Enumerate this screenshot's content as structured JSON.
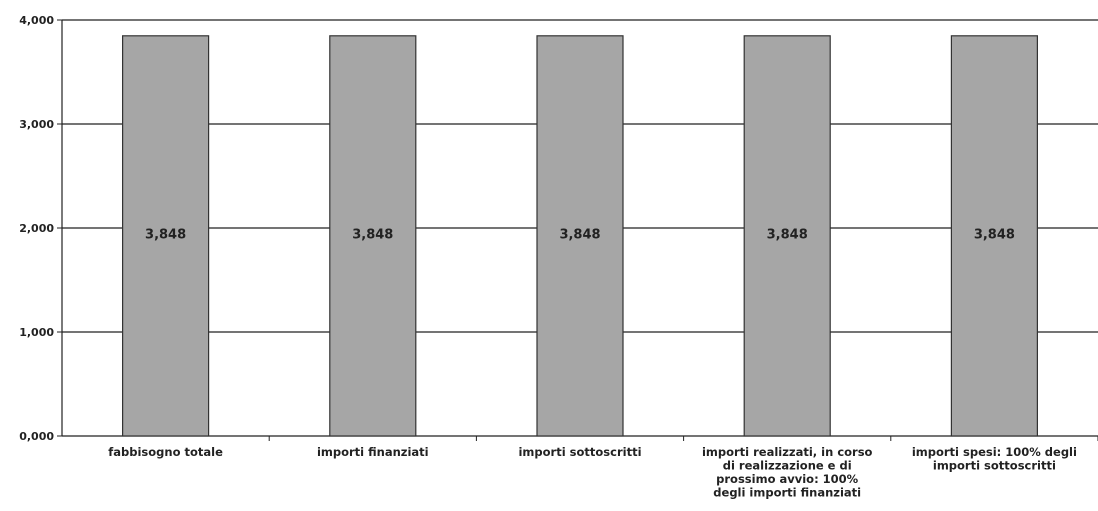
{
  "chart_data": {
    "type": "bar",
    "categories": [
      "fabbisogno totale",
      "importi finanziati",
      "importi sottoscritti",
      "importi realizzati, in corso di realizzazione e di prossimo avvio: 100% degli importi finanziati",
      "importi spesi: 100% degli importi sottoscritti"
    ],
    "category_label_lines": [
      [
        "fabbisogno totale"
      ],
      [
        "importi finanziati"
      ],
      [
        "importi sottoscritti"
      ],
      [
        "importi realizzati, in corso",
        "di realizzazione e di",
        "prossimo avvio: 100%",
        "degli importi finanziati"
      ],
      [
        "importi spesi: 100% degli",
        "importi sottoscritti"
      ]
    ],
    "values": [
      3.848,
      3.848,
      3.848,
      3.848,
      3.848
    ],
    "data_labels": [
      "3,848",
      "3,848",
      "3,848",
      "3,848",
      "3,848"
    ],
    "yticks": [
      0,
      1,
      2,
      3,
      4
    ],
    "ytick_labels": [
      "0,000",
      "1,000",
      "2,000",
      "3,000",
      "4,000"
    ],
    "ylim": [
      0,
      4
    ],
    "grid": true,
    "bar_color": "#a6a6a6",
    "bar_edge_color": "#333333",
    "title": "",
    "xlabel": "",
    "ylabel": ""
  }
}
